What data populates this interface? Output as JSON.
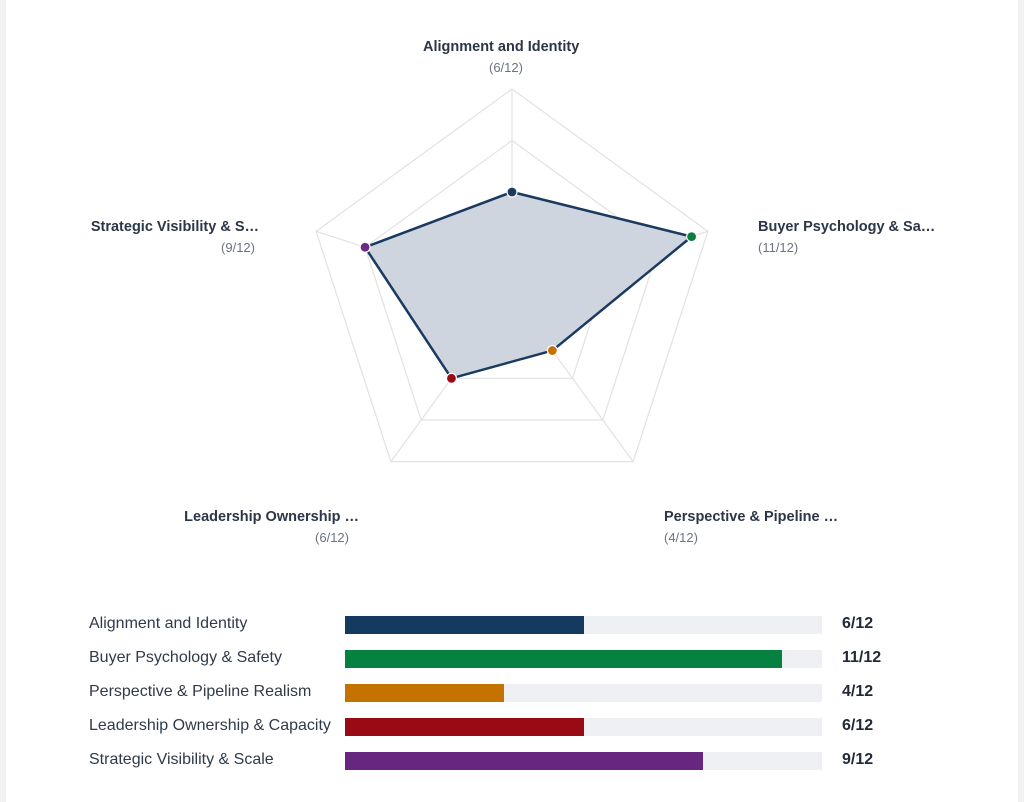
{
  "chart_data": [
    {
      "type": "radar",
      "max": 12,
      "rings": 4,
      "axes": [
        {
          "title": "Alignment and Identity",
          "score_text": "(6/12)",
          "value": 6,
          "color": "#1b3a5f"
        },
        {
          "title": "Buyer Psychology & Sa…",
          "score_text": "(11/12)",
          "value": 11,
          "color": "#0a7f3f"
        },
        {
          "title": "Perspective & Pipeline …",
          "score_text": "(4/12)",
          "value": 4,
          "color": "#c87000"
        },
        {
          "title": "Leadership Ownership …",
          "score_text": "(6/12)",
          "value": 6,
          "color": "#9b0a14"
        },
        {
          "title": "Strategic Visibility & S…",
          "score_text": "(9/12)",
          "value": 9,
          "color": "#6a2a83"
        }
      ],
      "line_color": "#1b3a5f",
      "fill_color": "#cfd5df",
      "grid_color": "#e2e2e2"
    },
    {
      "type": "bar",
      "max": 12,
      "rows": [
        {
          "label": "Alignment and Identity",
          "value": 6,
          "value_text": "6/12",
          "color": "#143a60"
        },
        {
          "label": "Buyer Psychology & Safety",
          "value": 11,
          "value_text": "11/12",
          "color": "#078140"
        },
        {
          "label": "Perspective & Pipeline Realism",
          "value": 4,
          "value_text": "4/12",
          "color": "#c47200"
        },
        {
          "label": "Leadership Ownership & Capacity",
          "value": 6,
          "value_text": "6/12",
          "color": "#9a0a15"
        },
        {
          "label": "Strategic Visibility & Scale",
          "value": 9,
          "value_text": "9/12",
          "color": "#67267f"
        }
      ]
    }
  ]
}
